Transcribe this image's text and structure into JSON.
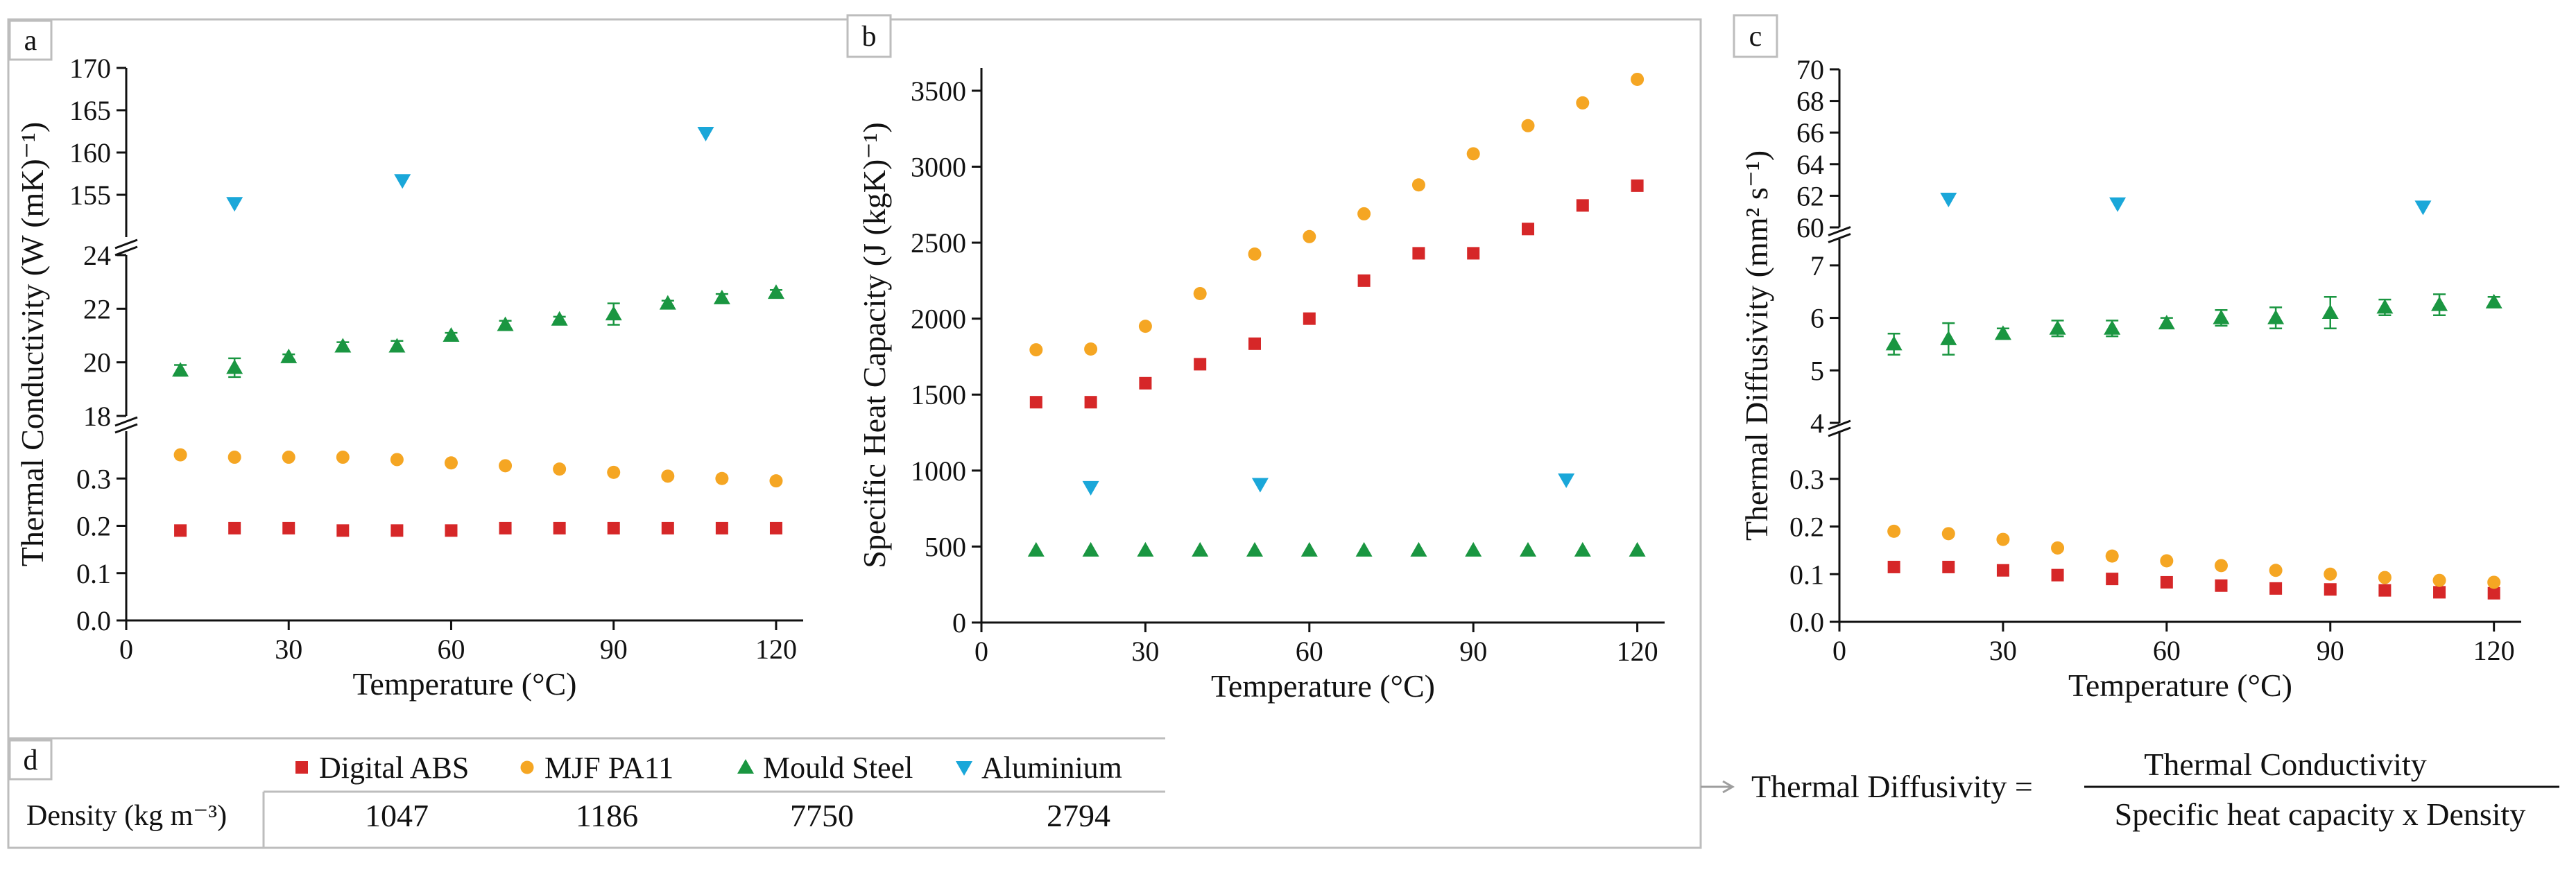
{
  "colors": {
    "abs": "#d62728",
    "pa11": "#f5a623",
    "steel": "#1a9641",
    "al": "#1aa7d9",
    "frame": "#bdbdbd"
  },
  "panels": {
    "a": "a",
    "b": "b",
    "c": "c",
    "d": "d"
  },
  "legend": [
    {
      "label": "Digital ABS",
      "marker": "square",
      "color": "#d62728"
    },
    {
      "label": "MJF PA11",
      "marker": "circle",
      "color": "#f5a623"
    },
    {
      "label": "Mould Steel",
      "marker": "triangle-up",
      "color": "#1a9641"
    },
    {
      "label": "Aluminium",
      "marker": "triangle-down",
      "color": "#1aa7d9"
    }
  ],
  "density": {
    "label": "Density (kg m⁻³)",
    "values": [
      "1047",
      "1186",
      "7750",
      "2794"
    ]
  },
  "formula": {
    "lhs": "Thermal Diffusivity =",
    "numerator": "Thermal Conductivity",
    "denominator": "Specific heat capacity x Density"
  },
  "chart_data": [
    {
      "id": "a",
      "type": "scatter",
      "xlabel": "Temperature (°C)",
      "ylabel": "Thermal Conductivity (W (mK)⁻¹)",
      "xlim": [
        0,
        125
      ],
      "xticks": [
        "0",
        "30",
        "60",
        "90",
        "120"
      ],
      "xtick_values": [
        0,
        30,
        60,
        90,
        120
      ],
      "axis_breaks": true,
      "segments": [
        {
          "range": [
            0,
            0.4
          ],
          "ticks": [
            "0.0",
            "0.1",
            "0.2",
            "0.3"
          ],
          "tick_values": [
            0,
            0.1,
            0.2,
            0.3
          ]
        },
        {
          "range": [
            18,
            24
          ],
          "ticks": [
            "18",
            "20",
            "22",
            "24"
          ],
          "tick_values": [
            18,
            20,
            22,
            24
          ]
        },
        {
          "range": [
            150,
            170
          ],
          "ticks": [
            "155",
            "160",
            "165",
            "170"
          ],
          "tick_values": [
            155,
            160,
            165,
            170
          ]
        }
      ],
      "series": [
        {
          "name": "Digital ABS",
          "marker": "square",
          "x": [
            10,
            20,
            30,
            40,
            50,
            60,
            70,
            80,
            90,
            100,
            110,
            120
          ],
          "y": [
            0.19,
            0.195,
            0.195,
            0.19,
            0.19,
            0.19,
            0.195,
            0.195,
            0.195,
            0.195,
            0.195,
            0.195
          ]
        },
        {
          "name": "MJF PA11",
          "marker": "circle",
          "x": [
            10,
            20,
            30,
            40,
            50,
            60,
            70,
            80,
            90,
            100,
            110,
            120
          ],
          "y": [
            0.35,
            0.345,
            0.345,
            0.345,
            0.34,
            0.333,
            0.327,
            0.32,
            0.313,
            0.305,
            0.3,
            0.295
          ]
        },
        {
          "name": "Mould Steel",
          "marker": "triangle-up",
          "x": [
            10,
            20,
            30,
            40,
            50,
            60,
            70,
            80,
            90,
            100,
            110,
            120
          ],
          "y": [
            19.7,
            19.8,
            20.2,
            20.6,
            20.6,
            21.0,
            21.4,
            21.6,
            21.8,
            22.2,
            22.4,
            22.6
          ],
          "err": [
            0.2,
            0.35,
            0.1,
            0.15,
            0.2,
            0.1,
            0.15,
            0.1,
            0.4,
            0.1,
            0.15,
            0.1
          ]
        },
        {
          "name": "Aluminium",
          "marker": "triangle-down",
          "x": [
            20,
            51,
            107
          ],
          "y": [
            154.0,
            156.7,
            162.3
          ]
        }
      ]
    },
    {
      "id": "b",
      "type": "scatter",
      "xlabel": "Temperature (°C)",
      "ylabel": "Specific Heat Capacity (J (kgK)⁻¹)",
      "xlim": [
        0,
        125
      ],
      "xticks": [
        "0",
        "30",
        "60",
        "90",
        "120"
      ],
      "xtick_values": [
        0,
        30,
        60,
        90,
        120
      ],
      "ylim": [
        0,
        3650
      ],
      "yticks": [
        "0",
        "500",
        "1000",
        "1500",
        "2000",
        "2500",
        "3000",
        "3500"
      ],
      "ytick_values": [
        0,
        500,
        1000,
        1500,
        2000,
        2500,
        3000,
        3500
      ],
      "series": [
        {
          "name": "Digital ABS",
          "marker": "square",
          "x": [
            10,
            20,
            30,
            40,
            50,
            60,
            70,
            80,
            90,
            100,
            110,
            120
          ],
          "y": [
            1450,
            1450,
            1575,
            1700,
            1835,
            2000,
            2250,
            2430,
            2430,
            2590,
            2745,
            2875
          ]
        },
        {
          "name": "MJF PA11",
          "marker": "circle",
          "x": [
            10,
            20,
            30,
            40,
            50,
            60,
            70,
            80,
            90,
            100,
            110,
            120
          ],
          "y": [
            1795,
            1800,
            1950,
            2165,
            2425,
            2540,
            2690,
            2880,
            3085,
            3270,
            3420,
            3575
          ]
        },
        {
          "name": "Mould Steel",
          "marker": "triangle-up",
          "x": [
            10,
            20,
            30,
            40,
            50,
            60,
            70,
            80,
            90,
            100,
            110,
            120
          ],
          "y": [
            475,
            475,
            475,
            475,
            475,
            475,
            475,
            475,
            475,
            475,
            475,
            475
          ]
        },
        {
          "name": "Aluminium",
          "marker": "triangle-down",
          "x": [
            20,
            51,
            107
          ],
          "y": [
            890,
            910,
            940
          ]
        }
      ]
    },
    {
      "id": "c",
      "type": "scatter",
      "xlabel": "Temperature (°C)",
      "ylabel": "Thermal Diffusivity (mm² s⁻¹)",
      "xlim": [
        0,
        125
      ],
      "xticks": [
        "0",
        "30",
        "60",
        "90",
        "120"
      ],
      "xtick_values": [
        0,
        30,
        60,
        90,
        120
      ],
      "axis_breaks": true,
      "segments": [
        {
          "range": [
            0,
            0.4
          ],
          "ticks": [
            "0.0",
            "0.1",
            "0.2",
            "0.3"
          ],
          "tick_values": [
            0,
            0.1,
            0.2,
            0.3
          ]
        },
        {
          "range": [
            4,
            7.5
          ],
          "ticks": [
            "4",
            "5",
            "6",
            "7"
          ],
          "tick_values": [
            4,
            5,
            6,
            7
          ]
        },
        {
          "range": [
            60,
            70
          ],
          "ticks": [
            "60",
            "62",
            "64",
            "66",
            "68",
            "70"
          ],
          "tick_values": [
            60,
            62,
            64,
            66,
            68,
            70
          ]
        }
      ],
      "series": [
        {
          "name": "Digital ABS",
          "marker": "square",
          "x": [
            10,
            20,
            30,
            40,
            50,
            60,
            70,
            80,
            90,
            100,
            110,
            120
          ],
          "y": [
            0.115,
            0.115,
            0.108,
            0.098,
            0.09,
            0.083,
            0.076,
            0.07,
            0.068,
            0.066,
            0.062,
            0.06
          ]
        },
        {
          "name": "MJF PA11",
          "marker": "circle",
          "x": [
            10,
            20,
            30,
            40,
            50,
            60,
            70,
            80,
            90,
            100,
            110,
            120
          ],
          "y": [
            0.19,
            0.185,
            0.173,
            0.155,
            0.138,
            0.128,
            0.118,
            0.108,
            0.1,
            0.093,
            0.087,
            0.083
          ]
        },
        {
          "name": "Mould Steel",
          "marker": "triangle-up",
          "x": [
            10,
            20,
            30,
            40,
            50,
            60,
            70,
            80,
            90,
            100,
            110,
            120
          ],
          "y": [
            5.5,
            5.6,
            5.7,
            5.8,
            5.8,
            5.9,
            6.0,
            6.0,
            6.1,
            6.2,
            6.25,
            6.3
          ],
          "err": [
            0.2,
            0.3,
            0.1,
            0.15,
            0.15,
            0.1,
            0.15,
            0.2,
            0.3,
            0.15,
            0.2,
            0.1
          ]
        },
        {
          "name": "Aluminium",
          "marker": "triangle-down",
          "x": [
            20,
            51,
            107
          ],
          "y": [
            61.8,
            61.5,
            61.3
          ]
        }
      ]
    }
  ]
}
